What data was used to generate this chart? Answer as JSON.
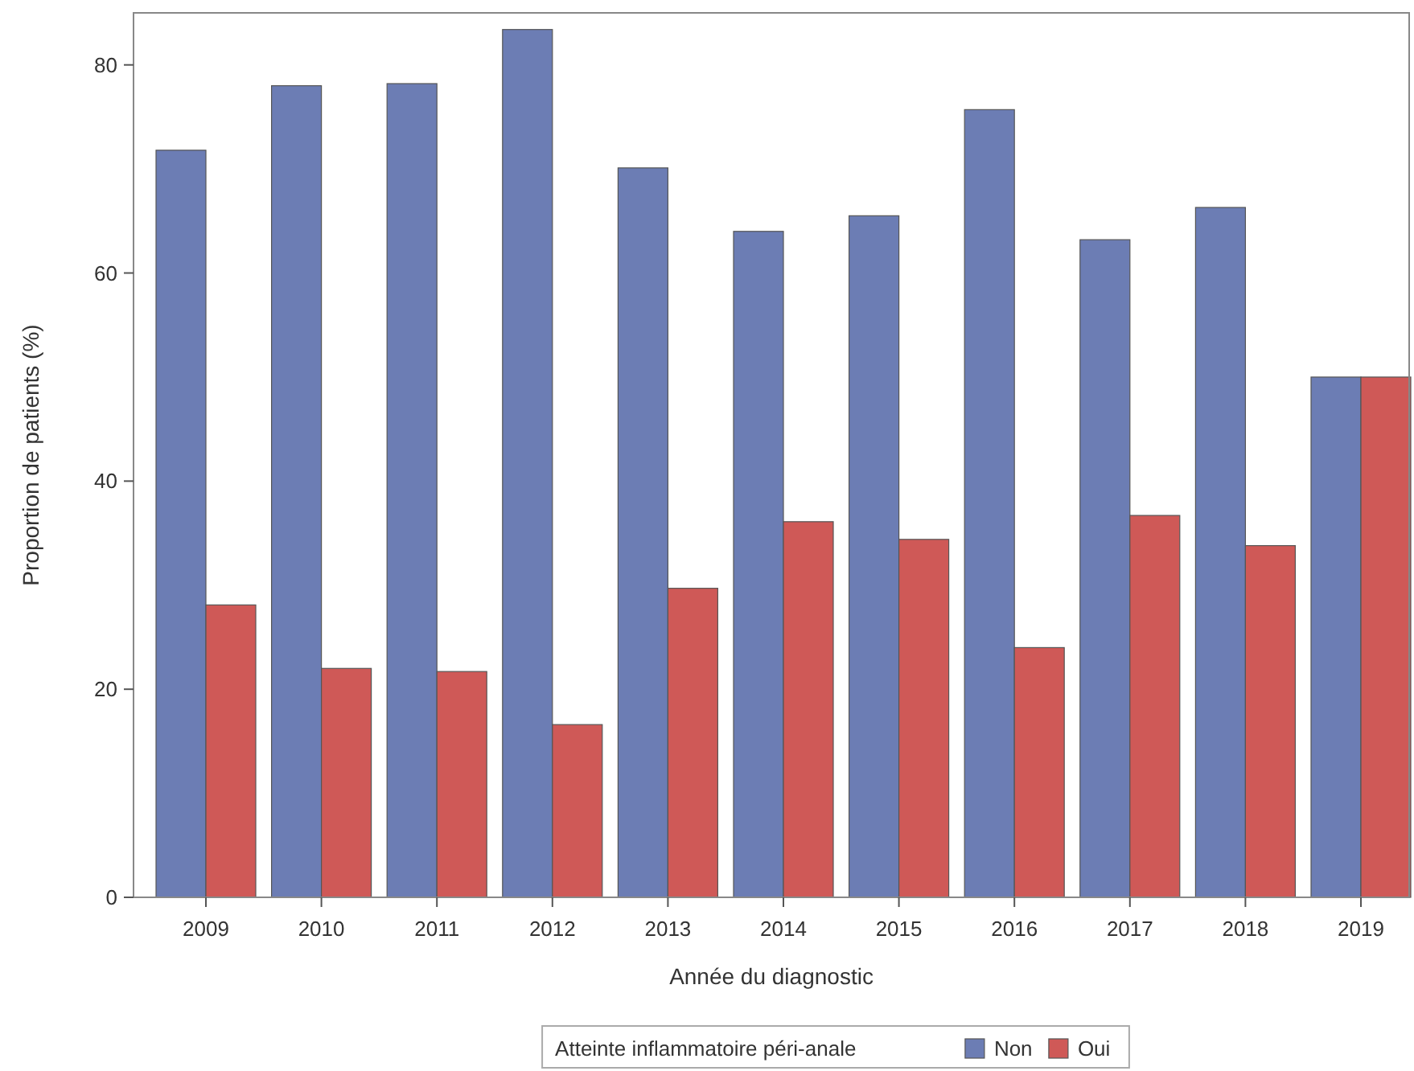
{
  "chart_data": {
    "type": "bar",
    "xlabel": "Année du diagnostic",
    "ylabel": "Proportion de patients (%)",
    "legend_title": "Atteinte inflammatoire péri-anale",
    "legend": "bottom",
    "categories": [
      "2009",
      "2010",
      "2011",
      "2012",
      "2013",
      "2014",
      "2015",
      "2016",
      "2017",
      "2018",
      "2019"
    ],
    "series": [
      {
        "name": "Non",
        "color": "#6c7db4",
        "values": [
          71.8,
          78.0,
          78.2,
          83.4,
          70.1,
          64.0,
          65.5,
          75.7,
          63.2,
          66.3,
          50
        ]
      },
      {
        "name": "Oui",
        "color": "#cf5957",
        "values": [
          28.1,
          22.0,
          21.7,
          16.6,
          29.7,
          36.1,
          34.4,
          24.0,
          36.7,
          33.8,
          50
        ]
      }
    ],
    "ylim": [
      0,
      85
    ],
    "yticks": [
      0,
      20,
      40,
      60,
      80
    ]
  }
}
